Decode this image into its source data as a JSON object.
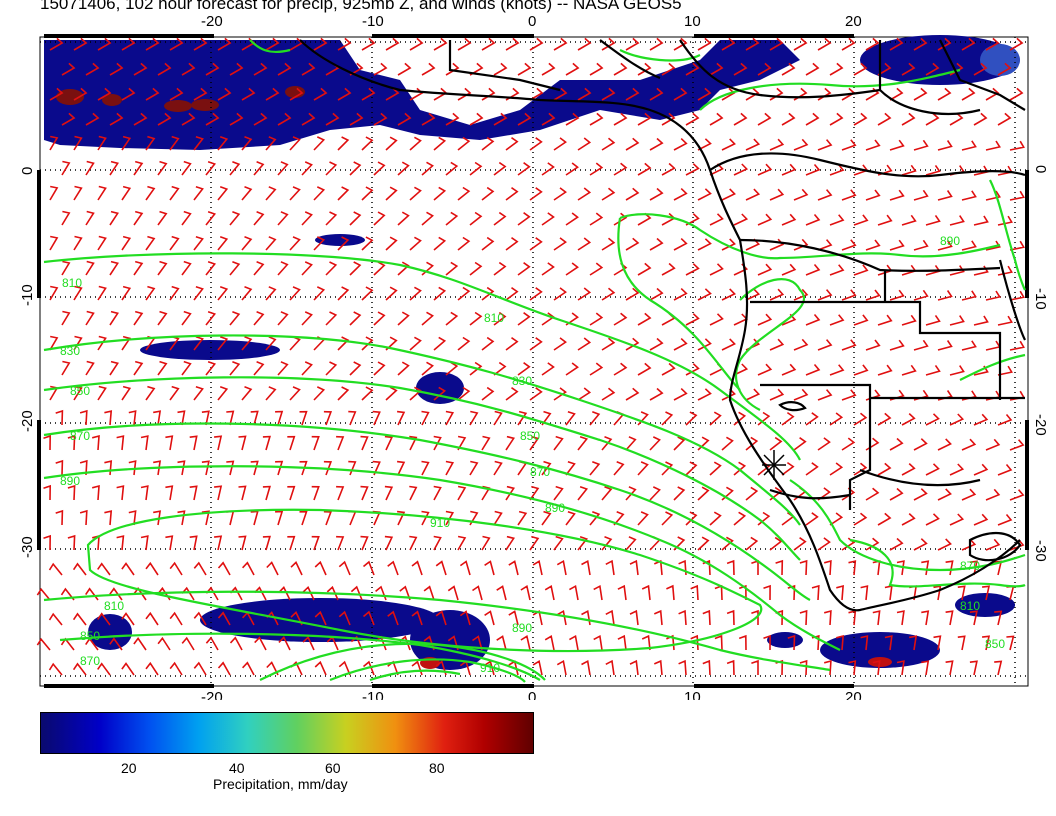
{
  "title": "15071406, 102 hour forecast for precip, 925mb Z, and winds (knots) -- NASA GEOS5",
  "map": {
    "lon_ticks_top": [
      "-20",
      "-10",
      "0",
      "10",
      "20"
    ],
    "lon_ticks_bottom": [
      "-20",
      "-10",
      "0",
      "10",
      "20"
    ],
    "lat_ticks": [
      "0",
      "-10",
      "-20",
      "-30"
    ],
    "lat_ticks_right": [
      "0",
      "-10",
      "-20",
      "-30"
    ],
    "contour_labels": [
      "810",
      "830",
      "850",
      "870",
      "890",
      "910",
      "810",
      "830",
      "850",
      "870",
      "890",
      "810",
      "850",
      "870",
      "890",
      "810",
      "850",
      "870",
      "890",
      "910"
    ],
    "colors": {
      "contour": "#22dd22",
      "wind_barbs": "#e01010",
      "coast": "#000000",
      "precip_low": "#0a0a8c"
    }
  },
  "colorbar": {
    "ticks": [
      "20",
      "40",
      "60",
      "80"
    ],
    "title": "Precipitation, mm/day"
  }
}
